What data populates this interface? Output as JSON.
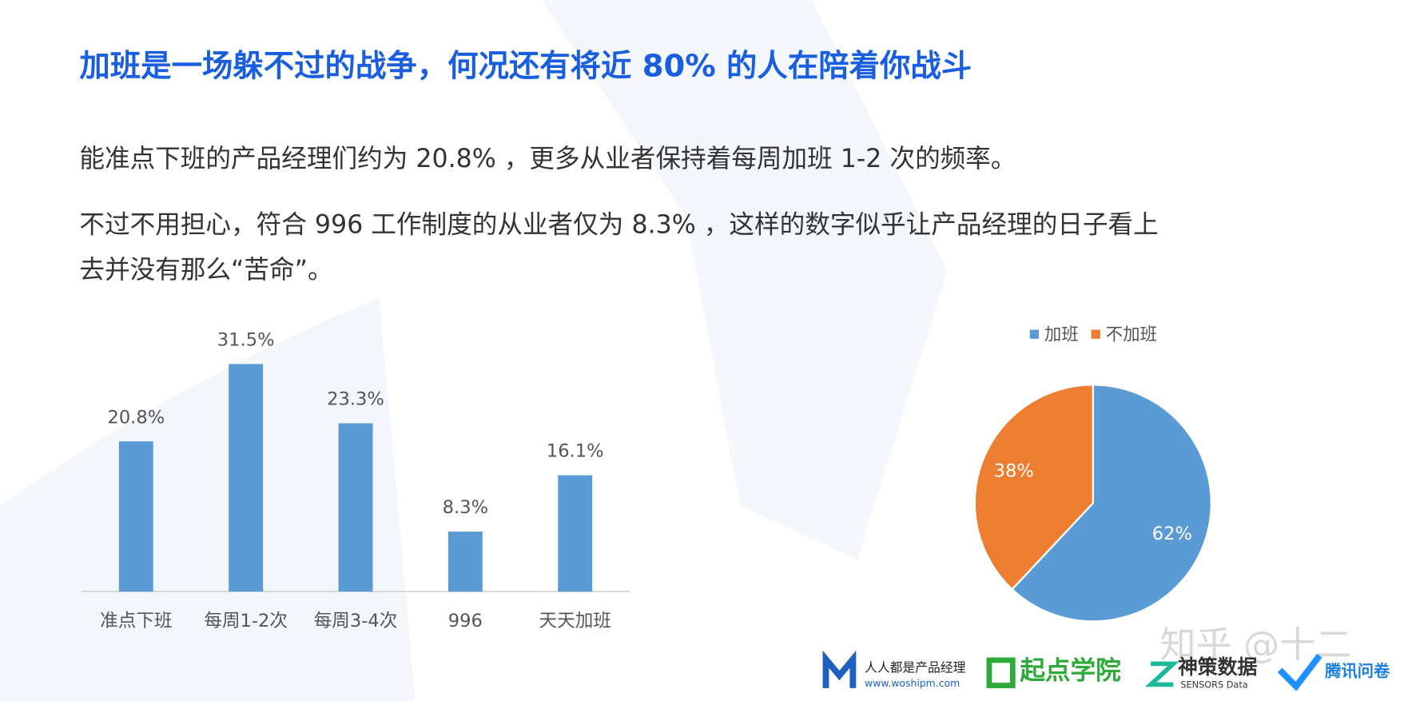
{
  "header": {
    "title": "加班是一场躲不过的战争，何况还有将近 80% 的人在陪着你战斗"
  },
  "paragraphs": [
    [
      "能准点下班的产品经理们约为 20.8% ，更多从业者保持着每周加班 1-2 次的频率。"
    ],
    [
      "不过不用担心，符合 996 工作制度的从业者仅为 8.3% ，这样的数字似乎让产品经理的日子看上",
      "去并没有那么“苦命”。"
    ]
  ],
  "chart_data": [
    {
      "type": "bar",
      "categories": [
        "准点下班",
        "每周1-2次",
        "每周3-4次",
        "996",
        "天天加班"
      ],
      "values": [
        20.8,
        31.5,
        23.3,
        8.3,
        16.1
      ],
      "value_labels": [
        "20.8%",
        "31.5%",
        "23.3%",
        "8.3%",
        "16.1%"
      ],
      "color": "#5b9bd5"
    },
    {
      "type": "pie",
      "categories": [
        "加班",
        "不加班"
      ],
      "values": [
        62,
        38
      ],
      "value_labels": [
        "62%",
        "38%"
      ],
      "colors": [
        "#5b9bd5",
        "#ed7d31"
      ],
      "legend": "top"
    }
  ],
  "footer": {
    "watermark": "知乎 @十二",
    "logos": [
      "人人都是产品经理",
      "www.woshipm.com",
      "起点学院",
      "神策数据",
      "SENSORS Data",
      "腾讯问卷"
    ]
  }
}
